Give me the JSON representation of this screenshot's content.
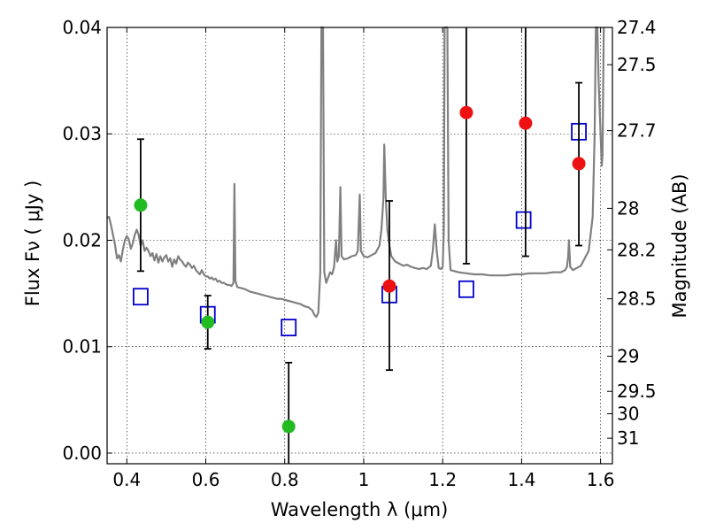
{
  "chart_data": {
    "type": "scatter",
    "xlabel": "Wavelength  λ (μm)",
    "ylabel": "Flux  Fν  ( μJy )",
    "y2label": "Magnitude (AB)",
    "xlim": [
      0.35,
      1.63
    ],
    "ylim": [
      -0.001,
      0.04
    ],
    "grid": true,
    "x_ticks": [
      0.4,
      0.6,
      0.8,
      1.0,
      1.2,
      1.4,
      1.6
    ],
    "x_tick_labels": [
      "0.4",
      "0.6",
      "0.8",
      "1",
      "1.2",
      "1.4",
      "1.6"
    ],
    "y_ticks": [
      0.0,
      0.01,
      0.02,
      0.03,
      0.04
    ],
    "y_tick_labels": [
      "0.00",
      "0.01",
      "0.02",
      "0.03",
      "0.04"
    ],
    "y2_ticks": [
      {
        "label": "27.4",
        "flux": 0.04
      },
      {
        "label": "27.5",
        "flux": 0.0365
      },
      {
        "label": "27.7",
        "flux": 0.0303
      },
      {
        "label": "28",
        "flux": 0.023
      },
      {
        "label": "28.2",
        "flux": 0.0191
      },
      {
        "label": "28.5",
        "flux": 0.0145
      },
      {
        "label": "29",
        "flux": 0.0091
      },
      {
        "label": "29.5",
        "flux": 0.0058
      },
      {
        "label": "30",
        "flux": 0.0037
      },
      {
        "label": "31",
        "flux": 0.0014
      }
    ],
    "template_spectrum": {
      "color": "#808080",
      "points": [
        [
          0.35,
          0.0221
        ],
        [
          0.355,
          0.0222
        ],
        [
          0.36,
          0.0214
        ],
        [
          0.365,
          0.0205
        ],
        [
          0.37,
          0.0196
        ],
        [
          0.375,
          0.0183
        ],
        [
          0.38,
          0.0186
        ],
        [
          0.385,
          0.018
        ],
        [
          0.39,
          0.0191
        ],
        [
          0.395,
          0.02
        ],
        [
          0.4,
          0.0204
        ],
        [
          0.405,
          0.0201
        ],
        [
          0.41,
          0.0192
        ],
        [
          0.415,
          0.0197
        ],
        [
          0.42,
          0.0205
        ],
        [
          0.425,
          0.021
        ],
        [
          0.43,
          0.0205
        ],
        [
          0.435,
          0.0195
        ],
        [
          0.44,
          0.02
        ],
        [
          0.445,
          0.019
        ],
        [
          0.45,
          0.0193
        ],
        [
          0.455,
          0.019
        ],
        [
          0.46,
          0.0185
        ],
        [
          0.465,
          0.0188
        ],
        [
          0.47,
          0.0181
        ],
        [
          0.475,
          0.0187
        ],
        [
          0.48,
          0.0179
        ],
        [
          0.485,
          0.0185
        ],
        [
          0.49,
          0.018
        ],
        [
          0.495,
          0.0184
        ],
        [
          0.5,
          0.0186
        ],
        [
          0.505,
          0.018
        ],
        [
          0.51,
          0.0183
        ],
        [
          0.515,
          0.0175
        ],
        [
          0.52,
          0.0182
        ],
        [
          0.525,
          0.0178
        ],
        [
          0.53,
          0.0185
        ],
        [
          0.535,
          0.0182
        ],
        [
          0.54,
          0.018
        ],
        [
          0.545,
          0.0177
        ],
        [
          0.55,
          0.0175
        ],
        [
          0.555,
          0.0179
        ],
        [
          0.56,
          0.0177
        ],
        [
          0.565,
          0.0174
        ],
        [
          0.57,
          0.0176
        ],
        [
          0.575,
          0.0172
        ],
        [
          0.58,
          0.017
        ],
        [
          0.585,
          0.0168
        ],
        [
          0.59,
          0.0172
        ],
        [
          0.595,
          0.0168
        ],
        [
          0.6,
          0.0166
        ],
        [
          0.605,
          0.0166
        ],
        [
          0.61,
          0.0164
        ],
        [
          0.615,
          0.0165
        ],
        [
          0.62,
          0.0163
        ],
        [
          0.625,
          0.0164
        ],
        [
          0.63,
          0.0161
        ],
        [
          0.635,
          0.0162
        ],
        [
          0.64,
          0.016
        ],
        [
          0.645,
          0.016
        ],
        [
          0.65,
          0.0159
        ],
        [
          0.655,
          0.0158
        ],
        [
          0.66,
          0.0158
        ],
        [
          0.665,
          0.0157
        ],
        [
          0.67,
          0.016
        ],
        [
          0.6725,
          0.0253
        ],
        [
          0.675,
          0.0162
        ],
        [
          0.68,
          0.0156
        ],
        [
          0.69,
          0.0155
        ],
        [
          0.7,
          0.0154
        ],
        [
          0.71,
          0.0152
        ],
        [
          0.72,
          0.0151
        ],
        [
          0.73,
          0.015
        ],
        [
          0.74,
          0.0149
        ],
        [
          0.75,
          0.0148
        ],
        [
          0.76,
          0.0147
        ],
        [
          0.77,
          0.0146
        ],
        [
          0.78,
          0.0145
        ],
        [
          0.79,
          0.0145
        ],
        [
          0.8,
          0.0144
        ],
        [
          0.81,
          0.0143
        ],
        [
          0.82,
          0.0142
        ],
        [
          0.83,
          0.0141
        ],
        [
          0.84,
          0.014
        ],
        [
          0.85,
          0.0138
        ],
        [
          0.86,
          0.0137
        ],
        [
          0.87,
          0.0134
        ],
        [
          0.875,
          0.013
        ],
        [
          0.88,
          0.0128
        ],
        [
          0.885,
          0.0132
        ],
        [
          0.89,
          0.017
        ],
        [
          0.893,
          0.04
        ],
        [
          0.897,
          0.04
        ],
        [
          0.9,
          0.017
        ],
        [
          0.905,
          0.016
        ],
        [
          0.91,
          0.0165
        ],
        [
          0.915,
          0.017
        ],
        [
          0.92,
          0.0168
        ],
        [
          0.925,
          0.0175
        ],
        [
          0.93,
          0.02
        ],
        [
          0.933,
          0.018
        ],
        [
          0.937,
          0.0185
        ],
        [
          0.941,
          0.025
        ],
        [
          0.944,
          0.0185
        ],
        [
          0.95,
          0.0182
        ],
        [
          0.96,
          0.0183
        ],
        [
          0.97,
          0.0185
        ],
        [
          0.98,
          0.0186
        ],
        [
          0.985,
          0.019
        ],
        [
          0.99,
          0.0243
        ],
        [
          0.993,
          0.019
        ],
        [
          1.0,
          0.0185
        ],
        [
          1.01,
          0.0184
        ],
        [
          1.02,
          0.0186
        ],
        [
          1.03,
          0.0188
        ],
        [
          1.04,
          0.0195
        ],
        [
          1.045,
          0.021
        ],
        [
          1.05,
          0.024
        ],
        [
          1.052,
          0.029
        ],
        [
          1.056,
          0.024
        ],
        [
          1.06,
          0.021
        ],
        [
          1.065,
          0.0195
        ],
        [
          1.07,
          0.0185
        ],
        [
          1.08,
          0.018
        ],
        [
          1.09,
          0.0178
        ],
        [
          1.1,
          0.0176
        ],
        [
          1.11,
          0.0177
        ],
        [
          1.12,
          0.0175
        ],
        [
          1.13,
          0.0174
        ],
        [
          1.14,
          0.0173
        ],
        [
          1.15,
          0.0174
        ],
        [
          1.16,
          0.0173
        ],
        [
          1.17,
          0.0176
        ],
        [
          1.175,
          0.019
        ],
        [
          1.18,
          0.0215
        ],
        [
          1.185,
          0.019
        ],
        [
          1.19,
          0.0174
        ],
        [
          1.195,
          0.0173
        ],
        [
          1.2,
          0.0175
        ],
        [
          1.203,
          0.021
        ],
        [
          1.205,
          0.04
        ],
        [
          1.212,
          0.04
        ],
        [
          1.215,
          0.02
        ],
        [
          1.22,
          0.0172
        ],
        [
          1.24,
          0.017
        ],
        [
          1.26,
          0.0169
        ],
        [
          1.28,
          0.0168
        ],
        [
          1.3,
          0.0168
        ],
        [
          1.32,
          0.0167
        ],
        [
          1.34,
          0.0167
        ],
        [
          1.36,
          0.0167
        ],
        [
          1.38,
          0.0168
        ],
        [
          1.4,
          0.0168
        ],
        [
          1.42,
          0.0169
        ],
        [
          1.44,
          0.0169
        ],
        [
          1.46,
          0.0169
        ],
        [
          1.48,
          0.017
        ],
        [
          1.5,
          0.017
        ],
        [
          1.51,
          0.0172
        ],
        [
          1.515,
          0.0175
        ],
        [
          1.518,
          0.0185
        ],
        [
          1.52,
          0.02
        ],
        [
          1.523,
          0.0175
        ],
        [
          1.53,
          0.0172
        ],
        [
          1.55,
          0.0176
        ],
        [
          1.57,
          0.019
        ],
        [
          1.58,
          0.0222
        ],
        [
          1.585,
          0.03
        ],
        [
          1.588,
          0.04
        ],
        [
          1.592,
          0.04
        ],
        [
          1.595,
          0.035
        ],
        [
          1.6,
          0.03
        ],
        [
          1.603,
          0.027
        ],
        [
          1.605,
          0.028
        ],
        [
          1.608,
          0.04
        ]
      ]
    },
    "measurements": [
      {
        "x": 0.435,
        "y": 0.0233,
        "err_low": 0.0171,
        "err_high": 0.0295,
        "color": "#22bb22"
      },
      {
        "x": 0.605,
        "y": 0.0123,
        "err_low": 0.0098,
        "err_high": 0.0148,
        "color": "#22bb22"
      },
      {
        "x": 0.81,
        "y": 0.0025,
        "err_low": -0.001,
        "err_high": 0.0085,
        "color": "#22bb22"
      },
      {
        "x": 1.065,
        "y": 0.0157,
        "err_low": 0.0078,
        "err_high": 0.0237,
        "color": "#ee1111"
      },
      {
        "x": 1.26,
        "y": 0.032,
        "err_low": 0.0178,
        "err_high": 0.04,
        "color": "#ee1111"
      },
      {
        "x": 1.41,
        "y": 0.031,
        "err_low": 0.0185,
        "err_high": 0.04,
        "color": "#ee1111"
      },
      {
        "x": 1.545,
        "y": 0.0272,
        "err_low": 0.0195,
        "err_high": 0.0348,
        "color": "#ee1111"
      }
    ],
    "model_fluxes": {
      "color": "#0000cc",
      "points": [
        [
          0.435,
          0.0147
        ],
        [
          0.605,
          0.013
        ],
        [
          0.81,
          0.0118
        ],
        [
          1.065,
          0.0149
        ],
        [
          1.26,
          0.0154
        ],
        [
          1.405,
          0.0219
        ],
        [
          1.545,
          0.0302
        ]
      ]
    }
  }
}
